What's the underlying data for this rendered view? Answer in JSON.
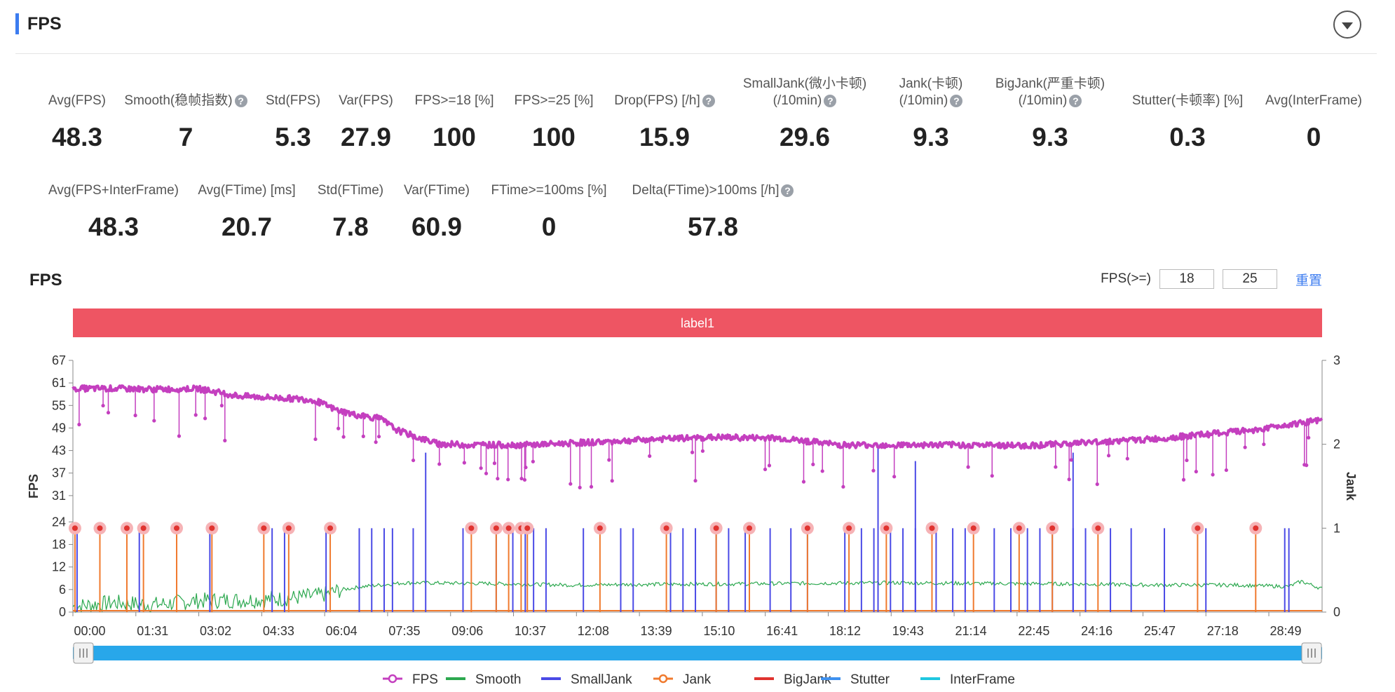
{
  "section": {
    "title": "FPS"
  },
  "metrics_row1": [
    {
      "label": "Avg(FPS)",
      "value": "48.3",
      "help": false
    },
    {
      "label": "Smooth(稳帧指数)",
      "value": "7",
      "help": true
    },
    {
      "label": "Std(FPS)",
      "value": "5.3",
      "help": false
    },
    {
      "label": "Var(FPS)",
      "value": "27.9",
      "help": false
    },
    {
      "label": "FPS>=18 [%]",
      "value": "100",
      "help": false
    },
    {
      "label": "FPS>=25 [%]",
      "value": "100",
      "help": false
    },
    {
      "label": "Drop(FPS) [/h]",
      "value": "15.9",
      "help": true
    },
    {
      "label": "SmallJank(微小卡顿)",
      "label2": "(/10min)",
      "value": "29.6",
      "help": true
    },
    {
      "label": "Jank(卡顿)",
      "label2": "(/10min)",
      "value": "9.3",
      "help": true
    },
    {
      "label": "BigJank(严重卡顿)",
      "label2": "(/10min)",
      "value": "9.3",
      "help": true
    },
    {
      "label": "Stutter(卡顿率) [%]",
      "value": "0.3",
      "help": false
    },
    {
      "label": "Avg(InterFrame)",
      "value": "0",
      "help": false
    }
  ],
  "metrics_row2": [
    {
      "label": "Avg(FPS+InterFrame)",
      "value": "48.3",
      "help": false
    },
    {
      "label": "Avg(FTime) [ms]",
      "value": "20.7",
      "help": false
    },
    {
      "label": "Std(FTime)",
      "value": "7.8",
      "help": false
    },
    {
      "label": "Var(FTime)",
      "value": "60.9",
      "help": false
    },
    {
      "label": "FTime>=100ms [%]",
      "value": "0",
      "help": false
    },
    {
      "label": "Delta(FTime)>100ms [/h]",
      "value": "57.8",
      "help": true
    }
  ],
  "chart_panel": {
    "title": "FPS",
    "threshold_label": "FPS(>=)",
    "threshold_1": "18",
    "threshold_2": "25",
    "reset_label": "重置",
    "help_glyph": "?"
  },
  "chart_data": {
    "type": "line",
    "band_label": "label1",
    "xlabel": "",
    "ylabel": "FPS",
    "y2label": "Jank",
    "x_ticks": [
      "00:00",
      "01:31",
      "03:02",
      "04:33",
      "06:04",
      "07:35",
      "09:06",
      "10:37",
      "12:08",
      "13:39",
      "15:10",
      "16:41",
      "18:12",
      "19:43",
      "21:14",
      "22:45",
      "24:16",
      "25:47",
      "27:18",
      "28:49"
    ],
    "x_range_minutes": [
      0,
      30.1
    ],
    "y_ticks": [
      0,
      6,
      12,
      18,
      24,
      31,
      37,
      43,
      49,
      55,
      61,
      67
    ],
    "ylim": [
      0,
      67
    ],
    "y2_ticks": [
      0,
      1,
      2,
      3
    ],
    "y2lim": [
      0,
      3
    ],
    "grid": false,
    "legend_position": "bottom",
    "series": [
      {
        "name": "FPS",
        "color": "#c43fbf",
        "axis": "left",
        "points_min_value": [
          [
            0,
            59.5
          ],
          [
            1,
            59.5
          ],
          [
            2,
            59.3
          ],
          [
            3,
            59.5
          ],
          [
            4,
            57.5
          ],
          [
            5,
            57.0
          ],
          [
            5.8,
            56.5
          ],
          [
            6.3,
            54.0
          ],
          [
            6.8,
            52.5
          ],
          [
            7.4,
            51.5
          ],
          [
            7.8,
            48.5
          ],
          [
            8.3,
            46.5
          ],
          [
            8.8,
            44.8
          ],
          [
            9.5,
            44.5
          ],
          [
            11,
            44.5
          ],
          [
            12.5,
            45.2
          ],
          [
            14,
            46.0
          ],
          [
            15.5,
            46.5
          ],
          [
            17,
            46.3
          ],
          [
            18.5,
            44.5
          ],
          [
            20,
            44.5
          ],
          [
            21.5,
            44.5
          ],
          [
            23,
            44.3
          ],
          [
            24.5,
            45.2
          ],
          [
            26,
            46.0
          ],
          [
            27.5,
            47.5
          ],
          [
            28.5,
            48.5
          ],
          [
            29.3,
            50.0
          ],
          [
            30.1,
            51.0
          ]
        ]
      },
      {
        "name": "Smooth",
        "color": "#2ca84f",
        "axis": "left",
        "points_min_value": [
          [
            0,
            1.5
          ],
          [
            1,
            2.5
          ],
          [
            2,
            2.0
          ],
          [
            3,
            3.0
          ],
          [
            4,
            3.2
          ],
          [
            5,
            3.5
          ],
          [
            6,
            4.5
          ],
          [
            6.5,
            6.0
          ],
          [
            7,
            6.8
          ],
          [
            8,
            7.8
          ],
          [
            10,
            7.6
          ],
          [
            12,
            7.2
          ],
          [
            14,
            7.4
          ],
          [
            16,
            7.5
          ],
          [
            18,
            7.7
          ],
          [
            20,
            7.8
          ],
          [
            22,
            7.6
          ],
          [
            24,
            7.5
          ],
          [
            26,
            7.2
          ],
          [
            28,
            7.2
          ],
          [
            29.3,
            6.8
          ],
          [
            29.6,
            8.2
          ],
          [
            30.1,
            6.2
          ]
        ]
      },
      {
        "name": "SmallJank",
        "color": "#4a4ae6",
        "axis": "right",
        "events_min": [
          0.1,
          1.6,
          3.3,
          4.8,
          5.1,
          6.1,
          6.9,
          7.2,
          7.5,
          7.7,
          8.2,
          9.4,
          10.2,
          10.6,
          10.9,
          11.1,
          11.4,
          12.3,
          13.2,
          13.5,
          14.4,
          14.7,
          15.0,
          15.5,
          15.8,
          16.2,
          16.8,
          17.3,
          17.7,
          18.6,
          19.0,
          19.3,
          19.7,
          20.0,
          20.3,
          20.8,
          21.2,
          21.5,
          22.2,
          22.6,
          23.0,
          23.3,
          23.6,
          24.1,
          24.4,
          25.0,
          25.5,
          26.3,
          27.3,
          29.2,
          29.3
        ],
        "tall_events_min": [
          [
            8.5,
            1.9
          ],
          [
            19.4,
            2.0
          ],
          [
            20.3,
            1.8
          ],
          [
            24.1,
            1.9
          ]
        ]
      },
      {
        "name": "Jank",
        "color": "#f07a2e",
        "axis": "right",
        "events_min": [
          0.05,
          0.65,
          1.3,
          1.7,
          2.5,
          3.35,
          4.6,
          5.2,
          6.2,
          9.6,
          10.2,
          10.5,
          10.8,
          10.95,
          12.7,
          14.3,
          15.5,
          16.3,
          17.7,
          18.7,
          19.6,
          20.7,
          21.7,
          22.8,
          23.6,
          24.7,
          27.1,
          28.5
        ]
      },
      {
        "name": "BigJank",
        "color": "#e0332f",
        "axis": "right",
        "events_min": [
          0.05,
          0.65,
          1.3,
          1.7,
          2.5,
          3.35,
          4.6,
          5.2,
          6.2,
          9.6,
          10.2,
          10.5,
          10.8,
          10.95,
          12.7,
          14.3,
          15.5,
          16.3,
          17.7,
          18.7,
          19.6,
          20.7,
          21.7,
          22.8,
          23.6,
          24.7,
          27.1,
          28.5
        ],
        "event_value": 1
      },
      {
        "name": "Stutter",
        "color": "#3e91f0",
        "axis": "right"
      },
      {
        "name": "InterFrame",
        "color": "#1fc7e0",
        "axis": "right"
      }
    ]
  }
}
